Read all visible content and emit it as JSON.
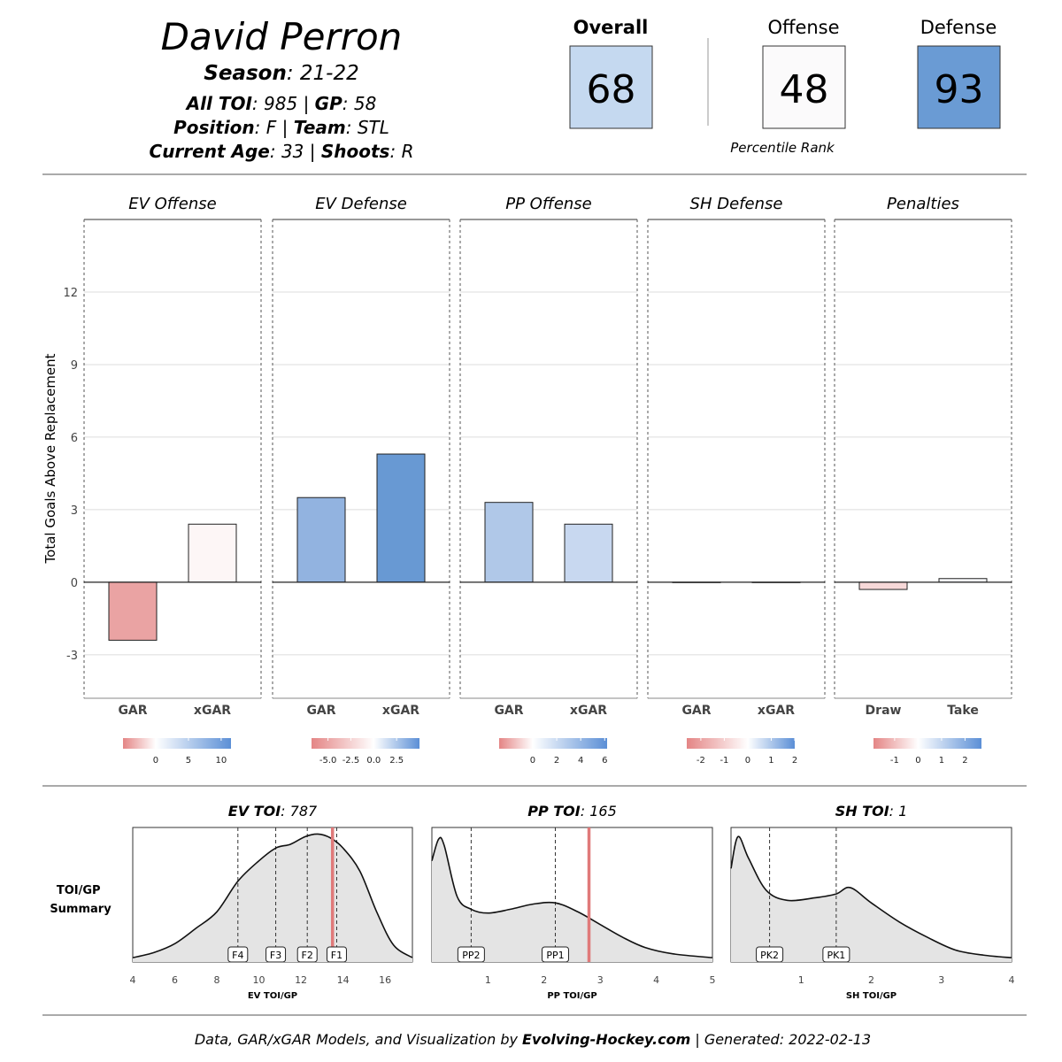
{
  "header": {
    "name": "David Perron",
    "season_label": "Season",
    "season_value": "21-22",
    "toi_label": "All TOI",
    "toi_value": "985",
    "gp_label": "GP",
    "gp_value": "58",
    "position_label": "Position",
    "position_value": "F",
    "team_label": "Team",
    "team_value": "STL",
    "age_label": "Current  Age",
    "age_value": "33",
    "shoots_label": "Shoots",
    "shoots_value": "R"
  },
  "ratings": {
    "overall": {
      "label": "Overall",
      "value": "68",
      "color": "#c5d9f0"
    },
    "offense": {
      "label": "Offense",
      "value": "48",
      "color": "#fbfafb"
    },
    "defense": {
      "label": "Defense",
      "value": "93",
      "color": "#6a9bd4"
    },
    "caption": "Percentile Rank"
  },
  "footer": {
    "prefix": "Data, GAR/xGAR Models, and Visualization by ",
    "brand": "Evolving-Hockey.com",
    "suffix": " | Generated: 2022-02-13"
  },
  "chart_data": [
    {
      "type": "bar",
      "ylabel": "Total Goals Above Replacement",
      "ylim": [
        -4.8,
        15
      ],
      "yticks": [
        -3,
        0,
        3,
        6,
        9,
        12
      ],
      "panels": [
        {
          "title": "EV Offense",
          "categories": [
            "GAR",
            "xGAR"
          ],
          "values": [
            -2.4,
            2.4
          ],
          "colors": [
            "#eaa3a3",
            "#fdf6f6"
          ],
          "legend_ticks": [
            "0",
            "5",
            "10"
          ],
          "legend_domain": [
            -5,
            11.5
          ],
          "legend_tick_values": [
            0,
            5,
            10
          ]
        },
        {
          "title": "EV Defense",
          "categories": [
            "GAR",
            "xGAR"
          ],
          "values": [
            3.5,
            5.3
          ],
          "colors": [
            "#92b3e0",
            "#6899d3"
          ],
          "legend_ticks": [
            "-5.0",
            "-2.5",
            "0.0",
            "2.5"
          ],
          "legend_domain": [
            -6.8,
            5.0
          ],
          "legend_tick_values": [
            -5.0,
            -2.5,
            0.0,
            2.5
          ]
        },
        {
          "title": "PP Offense",
          "categories": [
            "GAR",
            "xGAR"
          ],
          "values": [
            3.3,
            2.4
          ],
          "colors": [
            "#b0c8e8",
            "#c8d8f0"
          ],
          "legend_ticks": [
            "0",
            "2",
            "4",
            "6"
          ],
          "legend_domain": [
            -2.8,
            6.2
          ],
          "legend_tick_values": [
            0,
            2,
            4,
            6
          ]
        },
        {
          "title": "SH Defense",
          "categories": [
            "GAR",
            "xGAR"
          ],
          "values": [
            0,
            0
          ],
          "colors": [
            "#ffffff",
            "#ffffff"
          ],
          "legend_ticks": [
            "-2",
            "-1",
            "0",
            "1",
            "2"
          ],
          "legend_domain": [
            -2.6,
            2.0
          ],
          "legend_tick_values": [
            -2,
            -1,
            0,
            1,
            2
          ]
        },
        {
          "title": "Penalties",
          "categories": [
            "Draw",
            "Take"
          ],
          "values": [
            -0.3,
            0.15
          ],
          "colors": [
            "#f7d8d8",
            "#f7f9fc"
          ],
          "legend_ticks": [
            "-1",
            "0",
            "1",
            "2"
          ],
          "legend_domain": [
            -1.9,
            2.7
          ],
          "legend_tick_values": [
            -1,
            0,
            1,
            2
          ]
        }
      ]
    },
    {
      "type": "area",
      "summary_label": [
        "TOI/GP",
        "Summary"
      ],
      "panels": [
        {
          "title_label": "EV TOI",
          "title_value": "787",
          "xlabel": "EV TOI/GP",
          "xlim": [
            4,
            17.3
          ],
          "xticks": [
            4,
            6,
            8,
            10,
            12,
            14,
            16
          ],
          "density": [
            [
              4,
              0.02
            ],
            [
              5,
              0.06
            ],
            [
              6,
              0.13
            ],
            [
              7,
              0.25
            ],
            [
              8,
              0.38
            ],
            [
              9,
              0.62
            ],
            [
              10,
              0.78
            ],
            [
              10.8,
              0.88
            ],
            [
              11.5,
              0.91
            ],
            [
              12.2,
              0.97
            ],
            [
              12.8,
              0.99
            ],
            [
              13.4,
              0.96
            ],
            [
              14,
              0.88
            ],
            [
              14.8,
              0.7
            ],
            [
              15.6,
              0.38
            ],
            [
              16.4,
              0.12
            ],
            [
              17.3,
              0.02
            ]
          ],
          "markers": [
            {
              "label": "F4",
              "x": 9
            },
            {
              "label": "F3",
              "x": 10.8
            },
            {
              "label": "F2",
              "x": 12.3
            },
            {
              "label": "F1",
              "x": 13.7
            }
          ],
          "player": 13.5
        },
        {
          "title_label": "PP TOI",
          "title_value": "165",
          "xlabel": "PP TOI/GP",
          "xlim": [
            0,
            5
          ],
          "xticks": [
            1,
            2,
            3,
            4,
            5
          ],
          "density": [
            [
              0,
              0.78
            ],
            [
              0.12,
              0.95
            ],
            [
              0.22,
              0.9
            ],
            [
              0.45,
              0.5
            ],
            [
              0.7,
              0.4
            ],
            [
              1,
              0.37
            ],
            [
              1.4,
              0.4
            ],
            [
              1.8,
              0.44
            ],
            [
              2.2,
              0.45
            ],
            [
              2.6,
              0.38
            ],
            [
              3,
              0.28
            ],
            [
              3.4,
              0.18
            ],
            [
              3.8,
              0.1
            ],
            [
              4.3,
              0.05
            ],
            [
              5,
              0.02
            ]
          ],
          "markers": [
            {
              "label": "PP2",
              "x": 0.7
            },
            {
              "label": "PP1",
              "x": 2.2
            }
          ],
          "player": 2.8
        },
        {
          "title_label": "SH TOI",
          "title_value": "1",
          "xlabel": "SH TOI/GP",
          "xlim": [
            0,
            4
          ],
          "xticks": [
            1,
            2,
            3,
            4
          ],
          "density": [
            [
              0,
              0.72
            ],
            [
              0.1,
              0.97
            ],
            [
              0.25,
              0.8
            ],
            [
              0.5,
              0.55
            ],
            [
              0.8,
              0.47
            ],
            [
              1.2,
              0.49
            ],
            [
              1.5,
              0.52
            ],
            [
              1.7,
              0.57
            ],
            [
              2,
              0.45
            ],
            [
              2.4,
              0.3
            ],
            [
              2.8,
              0.18
            ],
            [
              3.2,
              0.08
            ],
            [
              3.6,
              0.04
            ],
            [
              4,
              0.02
            ]
          ],
          "markers": [
            {
              "label": "PK2",
              "x": 0.55
            },
            {
              "label": "PK1",
              "x": 1.5
            }
          ],
          "player": null
        }
      ]
    }
  ]
}
